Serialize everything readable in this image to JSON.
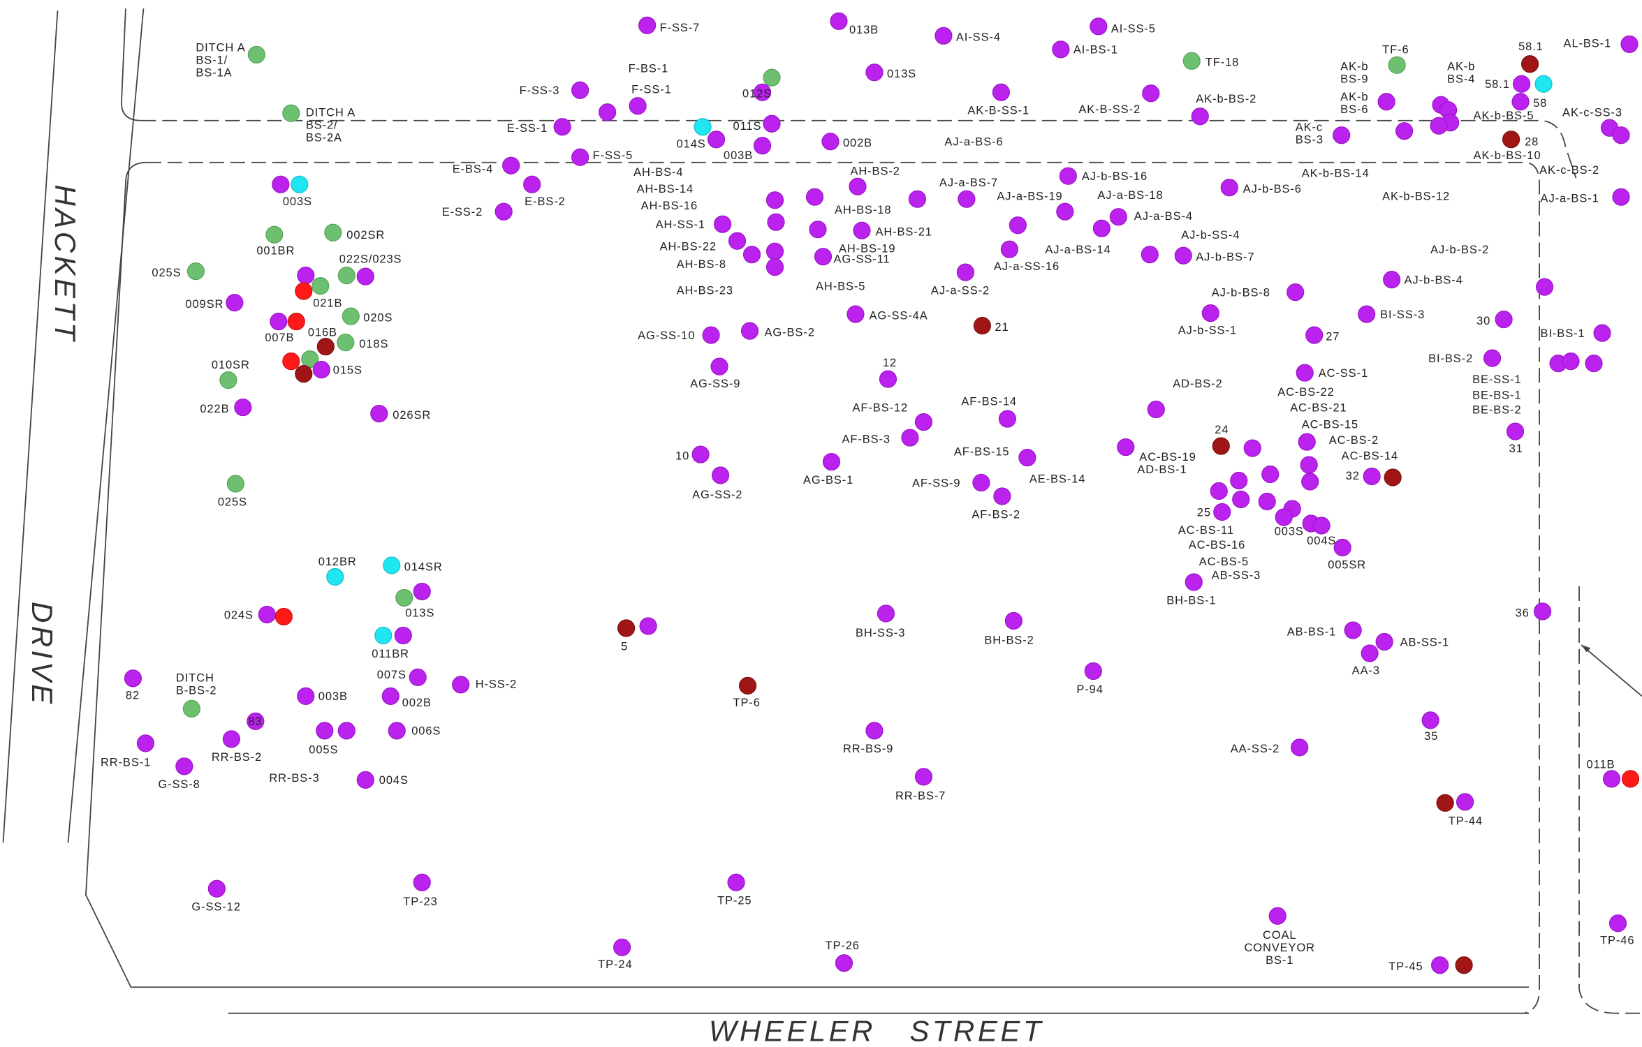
{
  "streets": {
    "hackett": "HACKETT",
    "drive": "DRIVE",
    "wheeler": "WHEELER   STREET"
  },
  "samples": [
    [
      "DITCH  A",
      "BS-1/",
      "BS-1A"
    ],
    [
      "DITCH  A",
      "BS-2/",
      "BS-2A"
    ],
    "F-SS-7",
    "013B",
    "AI-SS-4",
    "AI-SS-5",
    "AI-BS-1",
    "TF-18",
    "TF-6",
    "58.1",
    "AL-BS-1",
    "F-BS-1",
    "F-SS-1",
    "F-SS-3",
    "012S",
    "013S",
    [
      "AK-b",
      "BS-9"
    ],
    [
      "AK-b",
      "BS-4"
    ],
    [
      "AK-b",
      "BS-6"
    ],
    "58.1",
    "58",
    "AK-c-SS-3",
    "AK-B-SS-1",
    "AK-B-SS-2",
    "AK-b-BS-2",
    [
      "AK-c",
      "BS-3"
    ],
    "AK-b-BS-5",
    "28",
    "E-SS-1",
    "014S",
    "011S",
    "003B",
    "002B",
    "AJ-a-BS-6",
    "AK-b-BS-10",
    "AK-c-BS-2",
    "F-SS-5",
    "E-BS-4",
    "AH-BS-4",
    "AH-BS-2",
    "AJ-b-BS-16",
    "AK-b-BS-14",
    "E-BS-2",
    "AH-BS-14",
    "AH-BS-18",
    "AJ-a-BS-7",
    "AJ-a-BS-19",
    "AJ-a-BS-18",
    "AJ-b-BS-6",
    "AK-b-BS-12",
    "AJ-a-BS-1",
    "003S",
    "AH-BS-16",
    "AJ-a-BS-4",
    "E-SS-2",
    "001BR",
    "002SR",
    "AH-SS-1",
    "AH-BS-21",
    "AJ-a-BS-14",
    "AJ-b-SS-4",
    "AH-BS-22",
    "AH-BS-19",
    "AG-SS-11",
    "AJ-a-SS-16",
    "AJ-b-BS-7",
    "AJ-b-BS-2",
    "AH-BS-8",
    "022S/023S",
    "025S",
    "021B",
    "AH-BS-23",
    "AH-BS-5",
    "AJ-a-SS-2",
    "AJ-b-BS-8",
    "AJ-b-BS-4",
    "009SR",
    "020S",
    "007B",
    "AG-SS-4A",
    "21",
    "BI-SS-3",
    "30",
    "AJ-b-SS-1",
    "016B",
    "018S",
    "AG-SS-10",
    "AG-BS-2",
    "27",
    "BI-BS-1",
    "010SR",
    "015S",
    "AG-SS-9",
    "12",
    "AC-SS-1",
    "BI-BS-2",
    "BE-SS-1",
    "BE-BS-1",
    "BE-BS-2",
    "AD-BS-2",
    "AC-BS-22",
    "AC-BS-21",
    "022B",
    "026SR",
    "AF-BS-12",
    "AF-BS-14",
    "AC-BS-15",
    "31",
    "AF-BS-3",
    "24",
    "AC-BS-2",
    "AF-BS-15",
    "AE-BS-14",
    "10",
    "AC-BS-19",
    "AC-BS-14",
    "AG-BS-1",
    "AD-BS-1",
    "32",
    "AG-SS-2",
    "AF-SS-9",
    "AF-BS-2",
    "025S",
    "25",
    "AC-BS-11",
    "003S",
    "004S",
    "AC-BS-16",
    "005SR",
    "AC-BS-5",
    "AB-SS-3",
    "BH-BS-1",
    "012BR",
    "014SR",
    "013S",
    "024S",
    "5",
    "BH-SS-3",
    "BH-BS-2",
    "36",
    "AB-BS-1",
    "AB-SS-1",
    "011BR",
    "AA-3",
    "82",
    [
      "DITCH",
      "B-BS-2"
    ],
    "007S",
    "H-SS-2",
    "TP-6",
    "P-94",
    "003B",
    "002B",
    "83",
    "006S",
    "35",
    "011B",
    "RR-BS-9",
    "005S",
    "AA-SS-2",
    "RR-BS-1",
    "RR-BS-2",
    "G-SS-8",
    "RR-BS-3",
    "004S",
    "RR-BS-7",
    "TP-44",
    "G-SS-12",
    "TP-23",
    "TP-25",
    [
      "COAL",
      "CONVEYOR",
      "BS-1"
    ],
    "TP-46",
    "TP-24",
    "TP-26",
    "TP-45"
  ]
}
